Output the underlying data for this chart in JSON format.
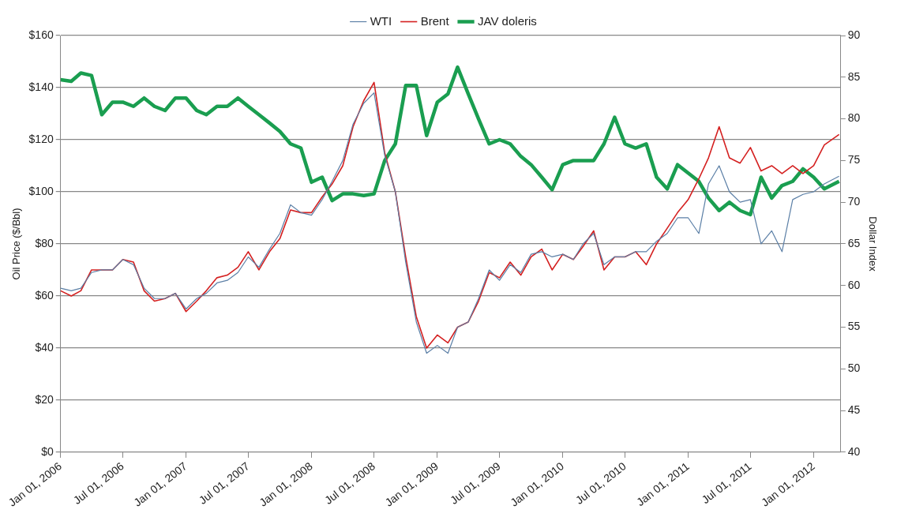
{
  "chart_data": {
    "type": "line",
    "ylabel": "Oil Price ($/Bbl)",
    "y2label": "Dollar Index",
    "legend": "top",
    "grid": "y",
    "marker": "none",
    "line_style": "solid",
    "xlim": [
      "2006-01-01",
      "2012-03-20"
    ],
    "xticks": [
      {
        "value": "2006-01-01",
        "label": "Jan 01, 2006"
      },
      {
        "value": "2006-07-01",
        "label": "Jul 01, 2006"
      },
      {
        "value": "2007-01-01",
        "label": "Jan 01, 2007"
      },
      {
        "value": "2007-07-01",
        "label": "Jul 01, 2007"
      },
      {
        "value": "2008-01-01",
        "label": "Jan 01, 2008"
      },
      {
        "value": "2008-07-01",
        "label": "Jul 01, 2008"
      },
      {
        "value": "2009-01-01",
        "label": "Jan 01, 2009"
      },
      {
        "value": "2009-07-01",
        "label": "Jul 01, 2009"
      },
      {
        "value": "2010-01-01",
        "label": "Jan 01, 2010"
      },
      {
        "value": "2010-07-01",
        "label": "Jul 01, 2010"
      },
      {
        "value": "2011-01-01",
        "label": "Jan 01, 2011"
      },
      {
        "value": "2011-07-01",
        "label": "Jul 01, 2011"
      },
      {
        "value": "2012-01-01",
        "label": "Jan 01, 2012"
      }
    ],
    "ylim": [
      0,
      160
    ],
    "yticks": [
      {
        "value": 0,
        "label": "$0"
      },
      {
        "value": 20,
        "label": "$20"
      },
      {
        "value": 40,
        "label": "$40"
      },
      {
        "value": 60,
        "label": "$60"
      },
      {
        "value": 80,
        "label": "$80"
      },
      {
        "value": 100,
        "label": "$100"
      },
      {
        "value": 120,
        "label": "$120"
      },
      {
        "value": 140,
        "label": "$140"
      },
      {
        "value": 160,
        "label": "$160"
      }
    ],
    "y2lim": [
      40,
      90
    ],
    "y2ticks": [
      40,
      45,
      50,
      55,
      60,
      65,
      70,
      75,
      80,
      85,
      90
    ],
    "x": [
      "2006-01-01",
      "2006-02-01",
      "2006-03-01",
      "2006-04-01",
      "2006-05-01",
      "2006-06-01",
      "2006-07-01",
      "2006-08-01",
      "2006-09-01",
      "2006-10-01",
      "2006-11-01",
      "2006-12-01",
      "2007-01-01",
      "2007-02-01",
      "2007-03-01",
      "2007-04-01",
      "2007-05-01",
      "2007-06-01",
      "2007-07-01",
      "2007-08-01",
      "2007-09-01",
      "2007-10-01",
      "2007-11-01",
      "2007-12-01",
      "2008-01-01",
      "2008-02-01",
      "2008-03-01",
      "2008-04-01",
      "2008-05-01",
      "2008-06-01",
      "2008-07-01",
      "2008-08-01",
      "2008-09-01",
      "2008-10-01",
      "2008-11-01",
      "2008-12-01",
      "2009-01-01",
      "2009-02-01",
      "2009-03-01",
      "2009-04-01",
      "2009-05-01",
      "2009-06-01",
      "2009-07-01",
      "2009-08-01",
      "2009-09-01",
      "2009-10-01",
      "2009-11-01",
      "2009-12-01",
      "2010-01-01",
      "2010-02-01",
      "2010-03-01",
      "2010-04-01",
      "2010-05-01",
      "2010-06-01",
      "2010-07-01",
      "2010-08-01",
      "2010-09-01",
      "2010-10-01",
      "2010-11-01",
      "2010-12-01",
      "2011-01-01",
      "2011-02-01",
      "2011-03-01",
      "2011-04-01",
      "2011-05-01",
      "2011-06-01",
      "2011-07-01",
      "2011-08-01",
      "2011-09-01",
      "2011-10-01",
      "2011-11-01",
      "2011-12-01",
      "2012-01-01",
      "2012-02-01",
      "2012-03-15"
    ],
    "series": [
      {
        "name": "WTI",
        "color": "#5b7fa6",
        "values": [
          63,
          62,
          63,
          69,
          70,
          70,
          74,
          72,
          63,
          59,
          59,
          61,
          55,
          59,
          61,
          65,
          66,
          69,
          75,
          71,
          78,
          84,
          95,
          92,
          91,
          97,
          104,
          112,
          126,
          134,
          138,
          114,
          100,
          73,
          50,
          38,
          41,
          38,
          48,
          50,
          59,
          70,
          66,
          72,
          69,
          76,
          77,
          75,
          76,
          74,
          80,
          84,
          72,
          75,
          75,
          77,
          77,
          81,
          84,
          90,
          90,
          84,
          103,
          110,
          100,
          96,
          97,
          80,
          85,
          77,
          97,
          99,
          100,
          103,
          106
        ]
      },
      {
        "name": "Brent",
        "color": "#d42020",
        "values": [
          62,
          60,
          62,
          70,
          70,
          70,
          74,
          73,
          62,
          58,
          59,
          61,
          54,
          58,
          62,
          67,
          68,
          71,
          77,
          70,
          77,
          82,
          93,
          92,
          92,
          98,
          103,
          110,
          125,
          135,
          142,
          115,
          100,
          75,
          52,
          40,
          45,
          42,
          48,
          50,
          58,
          69,
          67,
          73,
          68,
          75,
          78,
          70,
          76,
          74,
          79,
          85,
          70,
          75,
          75,
          77,
          72,
          80,
          86,
          92,
          97,
          105,
          113,
          125,
          113,
          111,
          117,
          108,
          110,
          107,
          110,
          107,
          110,
          118,
          122
        ]
      },
      {
        "name": "JAV doleris",
        "color": "#1a9e50",
        "axis": "y2",
        "values": [
          84.7,
          84.5,
          85.5,
          85.2,
          80.5,
          82,
          82,
          81.5,
          82.5,
          81.5,
          81,
          82.5,
          82.5,
          81,
          80.5,
          81.5,
          81.5,
          82.5,
          81.5,
          80.5,
          79.5,
          78.5,
          77,
          76.5,
          72.4,
          73,
          70.2,
          71,
          71,
          70.8,
          71,
          75,
          77,
          84,
          84,
          78,
          82,
          83,
          86.2,
          83,
          80,
          77,
          77.5,
          77,
          75.5,
          74.5,
          73,
          71.5,
          74.5,
          75,
          75,
          75,
          77,
          80.2,
          77,
          76.5,
          77,
          73,
          71.6,
          74.5,
          73.5,
          72.5,
          70.5,
          69,
          70,
          69,
          68.5,
          73,
          70.5,
          72,
          72.5,
          74,
          73,
          71.6,
          72.5
        ]
      }
    ]
  }
}
